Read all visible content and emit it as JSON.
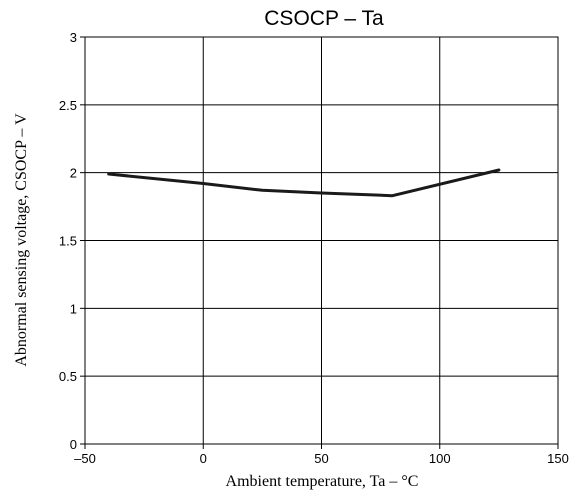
{
  "chart_data": {
    "type": "line",
    "title": "CSOCP  –  Ta",
    "xlabel": "Ambient temperature,  Ta  –  °C",
    "ylabel": "Abnormal sensing voltage, CSOCP  –  V",
    "xlim": [
      -50,
      150
    ],
    "ylim": [
      0,
      3
    ],
    "x_ticks": [
      -50,
      0,
      50,
      100,
      150
    ],
    "y_ticks": [
      0,
      0.5,
      1,
      1.5,
      2,
      2.5,
      3
    ],
    "x_tick_labels": [
      "–50",
      "0",
      "50",
      "100",
      "150"
    ],
    "y_tick_labels": [
      "0",
      "0.5",
      "1",
      "1.5",
      "2",
      "2.5",
      "3"
    ],
    "grid": true,
    "series": [
      {
        "x": [
          -40,
          0,
          25,
          50,
          80,
          125
        ],
        "y": [
          1.99,
          1.92,
          1.87,
          1.85,
          1.83,
          2.02
        ],
        "color": "#1a1a1a"
      }
    ]
  }
}
